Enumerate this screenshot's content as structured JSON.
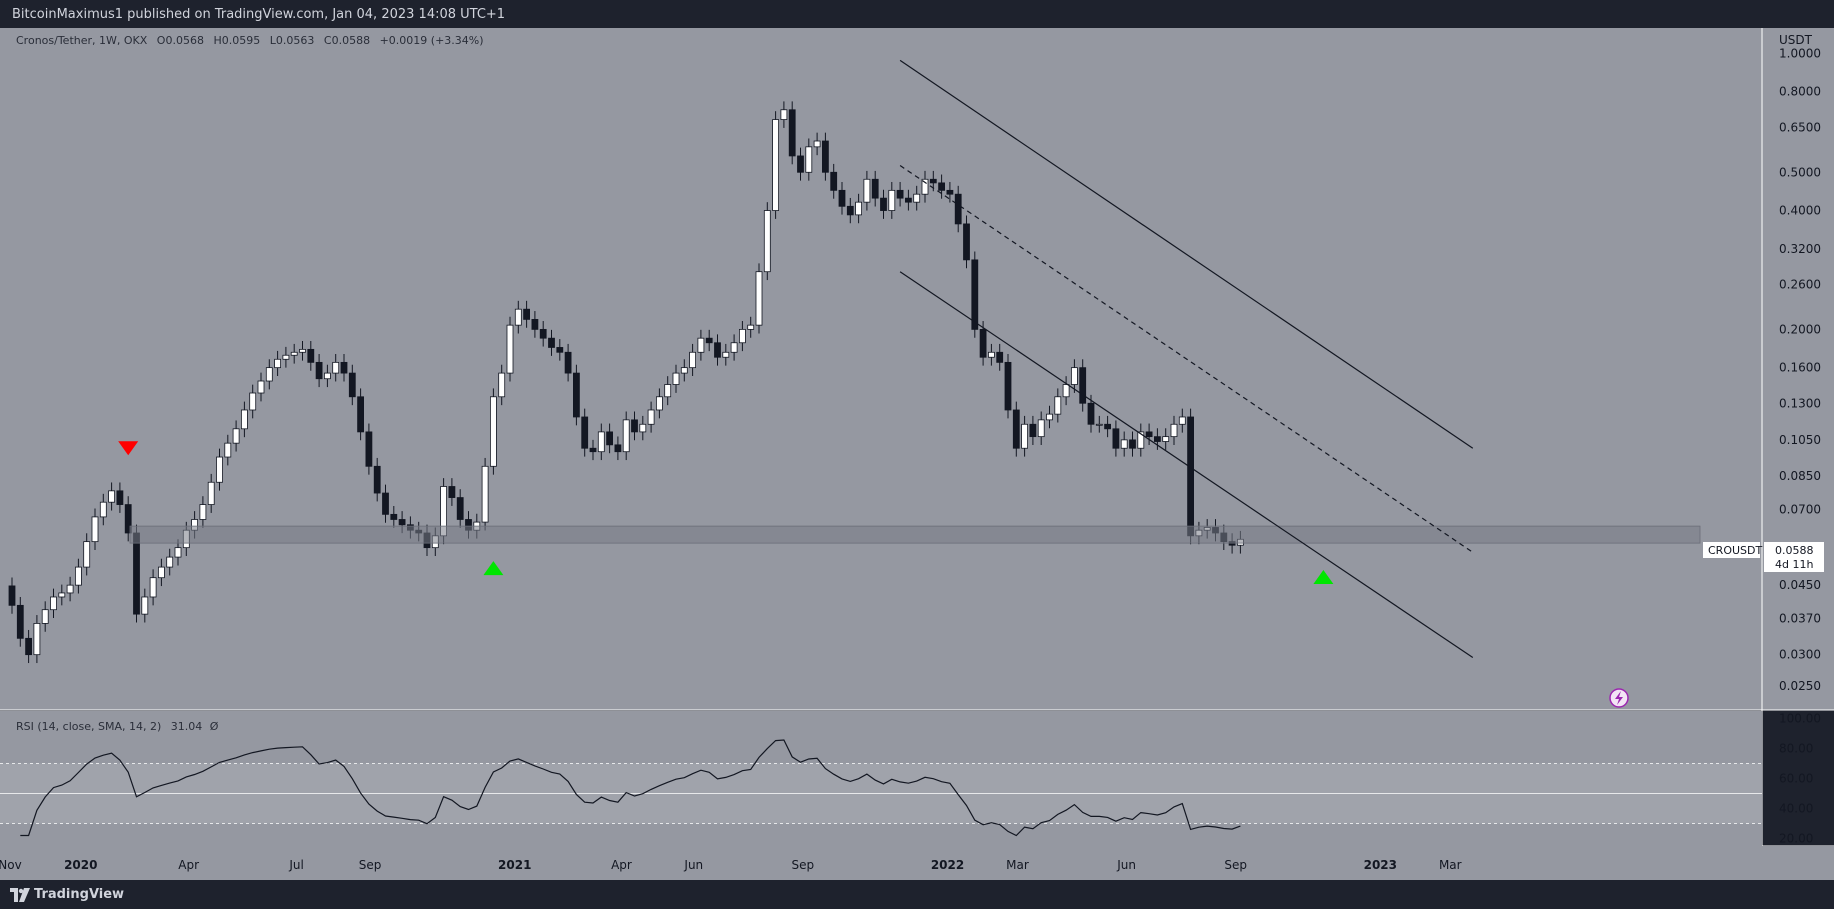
{
  "header": {
    "published": "BitcoinMaximus1 published on TradingView.com, Jan 04, 2023 14:08 UTC+1"
  },
  "footer": {
    "brand": "TradingView"
  },
  "colors": {
    "panel_bg": "#9598a1",
    "rsi_band": "#a0a3ab",
    "frame": "#1e222d",
    "bull": "#ffffff",
    "bear": "#131722",
    "signal_up": "#00e600",
    "signal_down": "#ff0000",
    "zone": "#787b86"
  },
  "chart_data": {
    "type": "candlestick",
    "symbol_info": "Cronos/Tether, 1W, OKX",
    "ohlc_readout": {
      "o_label": "O",
      "o": "0.0568",
      "h_label": "H",
      "h": "0.0595",
      "l_label": "L",
      "l": "0.0563",
      "c_label": "C",
      "c": "0.0588",
      "change": "+0.0019 (+3.34%)"
    },
    "y_axis": {
      "unit": "USDT",
      "scale": "log",
      "range": [
        0.0225,
        1.12
      ],
      "ticks": [
        "1.0000",
        "0.8000",
        "0.6500",
        "0.5000",
        "0.4000",
        "0.3200",
        "0.2600",
        "0.2000",
        "0.1600",
        "0.1300",
        "0.1050",
        "0.0850",
        "0.0700",
        "0.0560",
        "0.0450",
        "0.0370",
        "0.0300",
        "0.0250"
      ]
    },
    "price_tag": {
      "symbol": "CROUSDT",
      "value": "0.0588",
      "countdown": "4d 11h"
    },
    "x_axis": {
      "labels": [
        "Nov",
        "2020",
        "Apr",
        "Jul",
        "Sep",
        "2021",
        "Apr",
        "Jun",
        "Sep",
        "2022",
        "Mar",
        "Jun",
        "Sep",
        "2023",
        "Mar"
      ],
      "bold": [
        "2020",
        "2021",
        "2022",
        "2023"
      ]
    },
    "closes": [
      0.04,
      0.033,
      0.03,
      0.036,
      0.039,
      0.042,
      0.043,
      0.045,
      0.05,
      0.058,
      0.067,
      0.073,
      0.078,
      0.072,
      0.061,
      0.038,
      0.042,
      0.047,
      0.05,
      0.053,
      0.056,
      0.062,
      0.066,
      0.072,
      0.082,
      0.095,
      0.103,
      0.112,
      0.125,
      0.138,
      0.148,
      0.16,
      0.168,
      0.172,
      0.175,
      0.178,
      0.165,
      0.15,
      0.155,
      0.165,
      0.155,
      0.135,
      0.11,
      0.09,
      0.077,
      0.068,
      0.066,
      0.064,
      0.062,
      0.061,
      0.056,
      0.06,
      0.08,
      0.075,
      0.066,
      0.062,
      0.065,
      0.09,
      0.135,
      0.155,
      0.205,
      0.225,
      0.212,
      0.2,
      0.19,
      0.18,
      0.175,
      0.155,
      0.12,
      0.1,
      0.098,
      0.11,
      0.102,
      0.098,
      0.118,
      0.11,
      0.115,
      0.125,
      0.135,
      0.145,
      0.155,
      0.16,
      0.175,
      0.19,
      0.185,
      0.17,
      0.175,
      0.185,
      0.2,
      0.205,
      0.28,
      0.4,
      0.68,
      0.72,
      0.55,
      0.5,
      0.58,
      0.6,
      0.5,
      0.45,
      0.41,
      0.39,
      0.42,
      0.48,
      0.43,
      0.4,
      0.45,
      0.43,
      0.42,
      0.44,
      0.48,
      0.47,
      0.45,
      0.44,
      0.37,
      0.3,
      0.2,
      0.17,
      0.175,
      0.165,
      0.125,
      0.1,
      0.115,
      0.107,
      0.118,
      0.122,
      0.135,
      0.145,
      0.16,
      0.13,
      0.115,
      0.115,
      0.112,
      0.1,
      0.105,
      0.1,
      0.11,
      0.107,
      0.104,
      0.107,
      0.115,
      0.12,
      0.06,
      0.062,
      0.063,
      0.061,
      0.058,
      0.0568,
      0.0588
    ],
    "rsi": {
      "label": "RSI (14, close, SMA, 14, 2)",
      "value": "31.04",
      "suffix": "Ø",
      "ticks": [
        "100.00",
        "80.00",
        "60.00",
        "40.00",
        "20.00"
      ],
      "band": [
        30,
        70
      ],
      "mid": 50
    },
    "annotations": {
      "resistance_zone": [
        0.0575,
        0.0635
      ],
      "channel_upper": [
        {
          "date": "2021-11-22",
          "price": 0.96
        },
        {
          "date": "2023-03-20",
          "price": 0.1
        }
      ],
      "channel_lower": [
        {
          "date": "2021-11-22",
          "price": 0.28
        },
        {
          "date": "2023-03-20",
          "price": 0.0295
        }
      ],
      "channel_mid": [
        {
          "date": "2021-11-22",
          "price": 0.52
        },
        {
          "date": "2023-03-20",
          "price": 0.0545
        }
      ],
      "signals": [
        {
          "type": "down",
          "color": "red",
          "date": "2020-02-10",
          "price": 0.1
        },
        {
          "type": "up",
          "color": "green",
          "date": "2020-12-14",
          "price": 0.0497
        },
        {
          "type": "up",
          "color": "green",
          "date": "2022-11-14",
          "price": 0.0472
        }
      ]
    }
  }
}
